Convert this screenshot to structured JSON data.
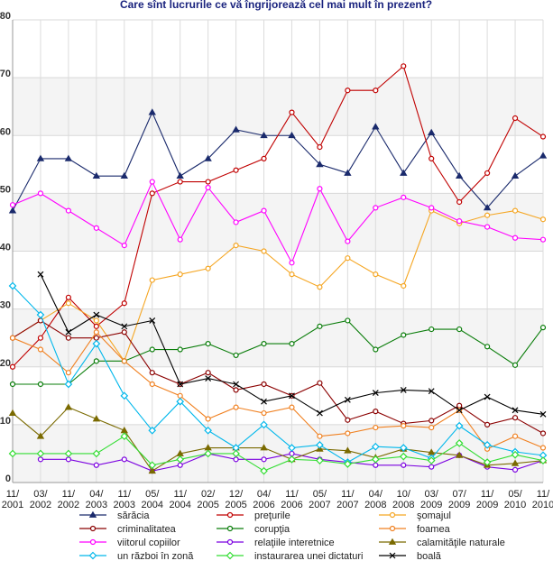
{
  "chart_data": {
    "type": "line",
    "title": "Care sînt lucrurile ce vă îngrijorează cel mai mult în prezent?",
    "xlabel": "",
    "ylabel": "",
    "ylim": [
      0,
      80
    ],
    "yticks": [
      0,
      10,
      20,
      30,
      40,
      50,
      60,
      70,
      80
    ],
    "categories": [
      "11/2001",
      "03/2002",
      "11/2002",
      "04/2003",
      "11/2003",
      "05/2004",
      "11/2004",
      "02/2005",
      "12/2005",
      "04/2006",
      "11/2006",
      "05/2007",
      "11/2007",
      "04/2008",
      "10/2008",
      "03/2009",
      "07/2009",
      "11/2009",
      "05/2010",
      "11/2010"
    ],
    "category_labels": [
      [
        "11/",
        "2001"
      ],
      [
        "03/",
        "2002"
      ],
      [
        "11/",
        "2002"
      ],
      [
        "04/",
        "2003"
      ],
      [
        "11/",
        "2003"
      ],
      [
        "05/",
        "2004"
      ],
      [
        "11/",
        "2004"
      ],
      [
        "02/",
        "2005"
      ],
      [
        "12/",
        "2005"
      ],
      [
        "04/",
        "2006"
      ],
      [
        "11/",
        "2006"
      ],
      [
        "05/",
        "2007"
      ],
      [
        "11/",
        "2007"
      ],
      [
        "04/",
        "2008"
      ],
      [
        "10/",
        "2008"
      ],
      [
        "03/",
        "2009"
      ],
      [
        "07/",
        "2009"
      ],
      [
        "11/",
        "2009"
      ],
      [
        "05/",
        "2010"
      ],
      [
        "11/",
        "2010"
      ]
    ],
    "legend_position": "bottom",
    "grid": true,
    "series": [
      {
        "name": "sărăcia",
        "color": "#1a2a6c",
        "marker": "triangle",
        "values": [
          47,
          56,
          56,
          53,
          53,
          64,
          53,
          56,
          61,
          60,
          60,
          55,
          53.5,
          61.5,
          53.5,
          60.5,
          53,
          47.5,
          53,
          56.5
        ]
      },
      {
        "name": "preţurile",
        "color": "#c00000",
        "marker": "circle",
        "values": [
          20,
          25,
          32,
          27,
          31,
          50,
          52,
          52,
          54,
          56,
          64,
          58,
          67.8,
          67.8,
          72,
          56,
          48.5,
          53.5,
          63,
          59.8
        ]
      },
      {
        "name": "şomajul",
        "color": "#f5a623",
        "marker": "circle",
        "values": [
          25,
          28,
          31,
          28,
          21,
          35,
          36,
          37,
          41,
          40,
          36,
          33.8,
          38.8,
          36,
          34,
          47,
          44.8,
          46.2,
          47,
          45.5
        ]
      },
      {
        "name": "criminalitatea",
        "color": "#8b0000",
        "marker": "circle",
        "values": [
          25,
          28,
          25,
          25,
          26,
          19,
          17,
          19,
          16,
          17,
          15,
          17.2,
          10.8,
          12.3,
          10.2,
          10.7,
          13.3,
          10,
          11.2,
          8.5
        ]
      },
      {
        "name": "corupţia",
        "color": "#0a7d0a",
        "marker": "circle",
        "values": [
          17,
          17,
          17,
          21,
          21,
          23,
          23,
          24,
          22,
          24,
          24,
          27,
          28,
          23,
          25.5,
          26.5,
          26.5,
          23.5,
          20.3,
          26.8
        ]
      },
      {
        "name": "foamea",
        "color": "#f08020",
        "marker": "circle",
        "values": [
          25,
          23,
          19,
          26,
          21,
          17,
          15,
          11,
          13,
          12,
          13,
          8,
          8.5,
          9.5,
          9.8,
          9.5,
          12.5,
          5.8,
          8,
          6
        ]
      },
      {
        "name": "viitorul copiilor",
        "color": "#ff00ff",
        "marker": "circle",
        "values": [
          48,
          50,
          47,
          44,
          41,
          52,
          42,
          51,
          45,
          47,
          38,
          50.8,
          41.7,
          47.5,
          49.3,
          47.5,
          45.2,
          44.2,
          42.3,
          42
        ]
      },
      {
        "name": "relaţiile interetnice",
        "color": "#7b00e0",
        "marker": "circle",
        "values": [
          null,
          4,
          4,
          3,
          4,
          2,
          3,
          5,
          4,
          4,
          5,
          4,
          3.5,
          3,
          3,
          2.7,
          4.7,
          2.7,
          2.2,
          3.8
        ]
      },
      {
        "name": "calamităţile naturale",
        "color": "#7a6a00",
        "marker": "triangle",
        "values": [
          12,
          8,
          13,
          11,
          9,
          2,
          5,
          6,
          6,
          6,
          4,
          5.8,
          5.5,
          4.3,
          5.8,
          5.2,
          4.7,
          3,
          3.3,
          3.8
        ]
      },
      {
        "name": "un război în zonă",
        "color": "#00b7eb",
        "marker": "diamond",
        "values": [
          34,
          29,
          17,
          24,
          15,
          9,
          14,
          9,
          6,
          10,
          6,
          6.5,
          3.5,
          6.2,
          6,
          4.2,
          9.8,
          6.5,
          5.3,
          4.7
        ]
      },
      {
        "name": "instaurarea unei dictaturi",
        "color": "#33dd33",
        "marker": "diamond",
        "values": [
          5,
          5,
          5,
          5,
          8,
          3,
          4,
          5,
          5,
          2,
          4,
          3.8,
          3.2,
          4,
          4.5,
          3.8,
          6.8,
          3.5,
          4.8,
          3.8
        ]
      },
      {
        "name": "boală",
        "color": "#000000",
        "marker": "cross",
        "values": [
          null,
          36,
          26,
          29,
          27,
          28,
          17,
          18,
          17,
          14,
          15,
          12,
          14.3,
          15.5,
          16,
          15.8,
          12.5,
          14.8,
          12.5,
          11.8
        ]
      }
    ]
  }
}
